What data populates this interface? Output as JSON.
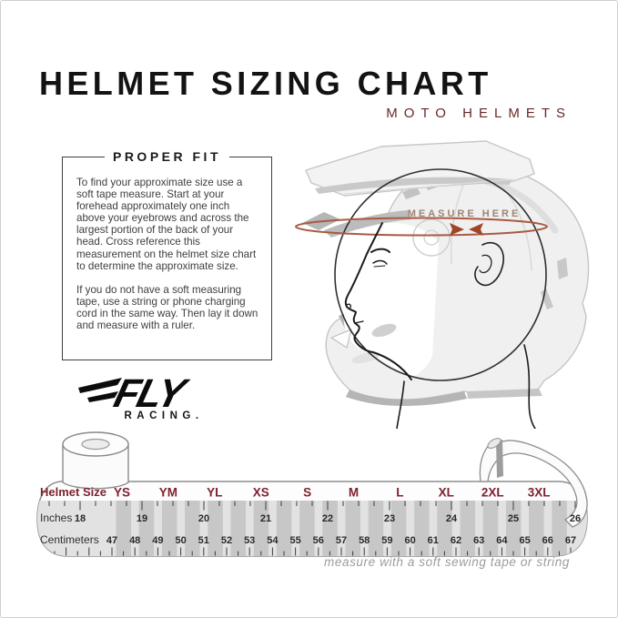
{
  "header": {
    "title": "HELMET SIZING CHART",
    "subtitle": "MOTO HELMETS"
  },
  "proper_fit": {
    "heading": "PROPER FIT",
    "paragraph1": "To find your approximate size use a soft tape measure. Start at your forehead approximately one inch above your eyebrows and across the largest portion of the back of your head. Cross reference this measurement on the helmet size chart to determine the approximate size.",
    "paragraph2": "If you do not have a soft measuring tape, use a string or phone charging cord in the same way. Then lay it down and measure with a ruler."
  },
  "diagram": {
    "measure_label": "MEASURE HERE"
  },
  "logo": {
    "brand": "FLY",
    "sub": "RACING."
  },
  "chart_data": {
    "type": "table",
    "title": "Helmet Sizing Chart - Moto Helmets",
    "rows": [
      {
        "label": "Helmet Size",
        "values": [
          "YS",
          "YM",
          "YL",
          "XS",
          "S",
          "M",
          "L",
          "XL",
          "2XL",
          "3XL"
        ]
      },
      {
        "label": "Inches",
        "values": [
          18,
          19,
          20,
          21,
          22,
          23,
          24,
          25,
          26
        ]
      },
      {
        "label": "Centimeters",
        "values": [
          47,
          48,
          49,
          50,
          51,
          52,
          53,
          54,
          55,
          56,
          57,
          58,
          59,
          60,
          61,
          62,
          63,
          64,
          65,
          66,
          67
        ]
      }
    ],
    "note": "measure with a soft sewing tape or string"
  },
  "colors": {
    "subtitle_maroon": "#672929",
    "size_red": "#7e2230",
    "measure_line": "#a85a42",
    "measure_text": "#9d8474",
    "tape_stripe": "#c7c7c7"
  }
}
